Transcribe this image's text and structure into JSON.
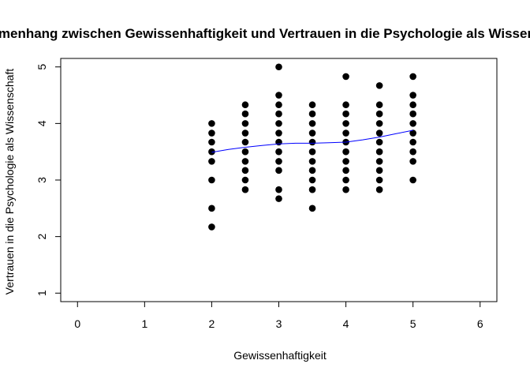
{
  "chart_data": {
    "type": "scatter",
    "title": "Zusammenhang zwischen Gewissenhaftigkeit und Vertrauen in die Psychologie als Wissenschaft",
    "xlabel": "Gewissenhaftigkeit",
    "ylabel": "Vertrauen in die Psychologie als Wissenschaft",
    "xlim": [
      -0.25,
      6.25
    ],
    "ylim": [
      0.85,
      5.15
    ],
    "x_ticks": [
      "0",
      "1",
      "2",
      "3",
      "4",
      "5",
      "6"
    ],
    "y_ticks": [
      "1",
      "2",
      "3",
      "4",
      "5"
    ],
    "grid": false,
    "point_color": "#000000",
    "smoother_color": "#0000ff",
    "points": [
      [
        2,
        2.17
      ],
      [
        2,
        2.5
      ],
      [
        2,
        3.0
      ],
      [
        2,
        3.33
      ],
      [
        2,
        3.5
      ],
      [
        2,
        3.67
      ],
      [
        2,
        3.83
      ],
      [
        2,
        4.0
      ],
      [
        2.5,
        2.83
      ],
      [
        2.5,
        3.0
      ],
      [
        2.5,
        3.17
      ],
      [
        2.5,
        3.33
      ],
      [
        2.5,
        3.5
      ],
      [
        2.5,
        3.67
      ],
      [
        2.5,
        3.83
      ],
      [
        2.5,
        4.0
      ],
      [
        2.5,
        4.17
      ],
      [
        2.5,
        4.33
      ],
      [
        3,
        2.67
      ],
      [
        3,
        2.83
      ],
      [
        3,
        3.17
      ],
      [
        3,
        3.33
      ],
      [
        3,
        3.5
      ],
      [
        3,
        3.67
      ],
      [
        3,
        3.83
      ],
      [
        3,
        4.0
      ],
      [
        3,
        4.17
      ],
      [
        3,
        4.33
      ],
      [
        3,
        4.5
      ],
      [
        3,
        5.0
      ],
      [
        3.5,
        2.5
      ],
      [
        3.5,
        2.83
      ],
      [
        3.5,
        3.0
      ],
      [
        3.5,
        3.17
      ],
      [
        3.5,
        3.33
      ],
      [
        3.5,
        3.5
      ],
      [
        3.5,
        3.67
      ],
      [
        3.5,
        3.83
      ],
      [
        3.5,
        4.0
      ],
      [
        3.5,
        4.17
      ],
      [
        3.5,
        4.33
      ],
      [
        4,
        2.83
      ],
      [
        4,
        3.0
      ],
      [
        4,
        3.17
      ],
      [
        4,
        3.33
      ],
      [
        4,
        3.5
      ],
      [
        4,
        3.67
      ],
      [
        4,
        3.83
      ],
      [
        4,
        4.0
      ],
      [
        4,
        4.17
      ],
      [
        4,
        4.33
      ],
      [
        4,
        4.83
      ],
      [
        4.5,
        2.83
      ],
      [
        4.5,
        3.0
      ],
      [
        4.5,
        3.17
      ],
      [
        4.5,
        3.33
      ],
      [
        4.5,
        3.5
      ],
      [
        4.5,
        3.67
      ],
      [
        4.5,
        3.83
      ],
      [
        4.5,
        4.0
      ],
      [
        4.5,
        4.17
      ],
      [
        4.5,
        4.33
      ],
      [
        4.5,
        4.67
      ],
      [
        5,
        3.0
      ],
      [
        5,
        3.33
      ],
      [
        5,
        3.5
      ],
      [
        5,
        3.67
      ],
      [
        5,
        3.83
      ],
      [
        5,
        4.0
      ],
      [
        5,
        4.17
      ],
      [
        5,
        4.33
      ],
      [
        5,
        4.5
      ],
      [
        5,
        4.83
      ]
    ],
    "smoother": [
      [
        2.0,
        3.49
      ],
      [
        2.25,
        3.54
      ],
      [
        2.5,
        3.58
      ],
      [
        2.75,
        3.61
      ],
      [
        3.0,
        3.64
      ],
      [
        3.25,
        3.65
      ],
      [
        3.5,
        3.65
      ],
      [
        3.75,
        3.66
      ],
      [
        4.0,
        3.67
      ],
      [
        4.25,
        3.71
      ],
      [
        4.5,
        3.76
      ],
      [
        4.75,
        3.82
      ],
      [
        5.0,
        3.88
      ]
    ]
  }
}
